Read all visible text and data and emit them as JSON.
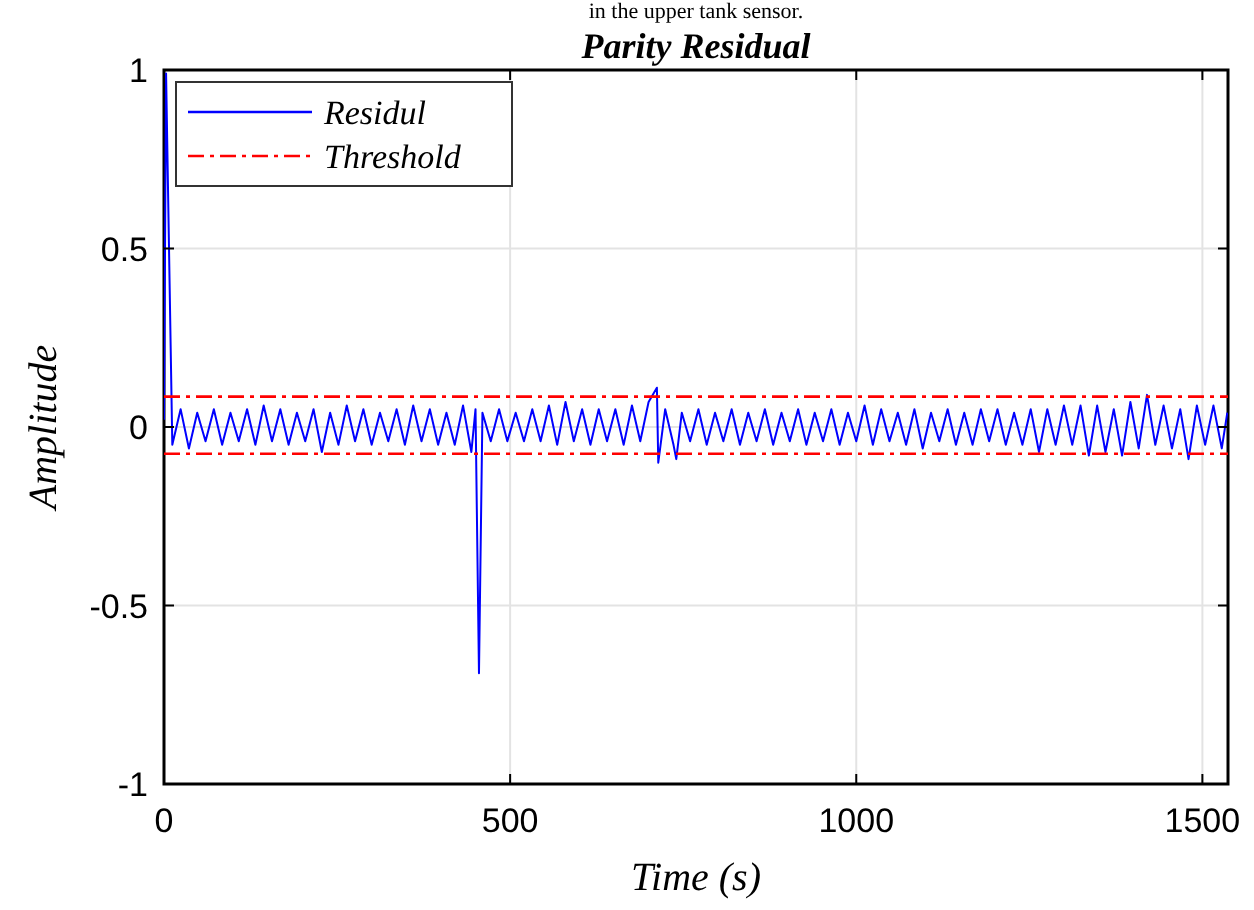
{
  "chart_data": {
    "type": "line",
    "title": "Parity Residual",
    "xlabel": "Time (s)",
    "ylabel": "Amplitude",
    "annotations": [
      "in the upper tank sensor."
    ],
    "xlim": [
      0,
      1537
    ],
    "xticks": [
      0,
      500,
      1000,
      1500
    ],
    "ylim": [
      -1,
      1
    ],
    "yticks": [
      -1,
      -0.5,
      0,
      0.5,
      1
    ],
    "grid": true,
    "legend": "top left",
    "series": [
      {
        "name": "Residul",
        "color": "#0000ff",
        "line_style": "solid",
        "x": [
          0,
          3,
          12,
          24,
          36,
          48,
          60,
          72,
          84,
          96,
          108,
          120,
          132,
          144,
          156,
          168,
          180,
          192,
          204,
          216,
          228,
          240,
          252,
          264,
          276,
          288,
          300,
          312,
          324,
          336,
          348,
          360,
          372,
          384,
          396,
          408,
          420,
          432,
          444,
          450,
          455,
          460,
          472,
          484,
          496,
          508,
          520,
          532,
          544,
          556,
          568,
          580,
          592,
          604,
          616,
          628,
          640,
          652,
          664,
          676,
          688,
          700,
          712,
          714,
          724,
          736,
          740,
          748,
          760,
          772,
          784,
          796,
          808,
          820,
          832,
          844,
          856,
          868,
          880,
          892,
          904,
          916,
          928,
          940,
          952,
          964,
          976,
          988,
          1000,
          1012,
          1024,
          1036,
          1048,
          1060,
          1072,
          1084,
          1096,
          1108,
          1120,
          1132,
          1144,
          1156,
          1168,
          1180,
          1192,
          1204,
          1216,
          1228,
          1240,
          1252,
          1264,
          1276,
          1288,
          1300,
          1312,
          1324,
          1336,
          1348,
          1360,
          1372,
          1384,
          1396,
          1408,
          1420,
          1432,
          1444,
          1456,
          1468,
          1480,
          1492,
          1504,
          1516,
          1528,
          1536
        ],
        "values": [
          0.02,
          0.99,
          -0.05,
          0.05,
          -0.06,
          0.04,
          -0.04,
          0.05,
          -0.05,
          0.04,
          -0.04,
          0.05,
          -0.05,
          0.06,
          -0.04,
          0.05,
          -0.05,
          0.04,
          -0.04,
          0.05,
          -0.07,
          0.04,
          -0.05,
          0.06,
          -0.04,
          0.05,
          -0.05,
          0.04,
          -0.04,
          0.05,
          -0.05,
          0.06,
          -0.04,
          0.05,
          -0.05,
          0.04,
          -0.05,
          0.06,
          -0.07,
          0.05,
          -0.69,
          0.04,
          -0.04,
          0.05,
          -0.04,
          0.04,
          -0.04,
          0.05,
          -0.04,
          0.06,
          -0.05,
          0.07,
          -0.04,
          0.05,
          -0.05,
          0.05,
          -0.04,
          0.05,
          -0.05,
          0.06,
          -0.04,
          0.07,
          0.11,
          -0.1,
          0.05,
          -0.05,
          -0.09,
          0.04,
          -0.04,
          0.05,
          -0.05,
          0.04,
          -0.04,
          0.05,
          -0.05,
          0.04,
          -0.04,
          0.05,
          -0.05,
          0.04,
          -0.04,
          0.05,
          -0.05,
          0.04,
          -0.04,
          0.05,
          -0.05,
          0.04,
          -0.04,
          0.06,
          -0.05,
          0.05,
          -0.04,
          0.04,
          -0.05,
          0.05,
          -0.06,
          0.04,
          -0.04,
          0.05,
          -0.05,
          0.04,
          -0.05,
          0.05,
          -0.04,
          0.05,
          -0.05,
          0.04,
          -0.05,
          0.05,
          -0.07,
          0.05,
          -0.05,
          0.06,
          -0.05,
          0.06,
          -0.08,
          0.06,
          -0.07,
          0.05,
          -0.08,
          0.07,
          -0.06,
          0.09,
          -0.05,
          0.06,
          -0.06,
          0.05,
          -0.09,
          0.06,
          -0.05,
          0.06,
          -0.06,
          0.04
        ]
      },
      {
        "name": "Threshold",
        "color": "#ff0000",
        "line_style": "dashed",
        "x": [
          0,
          1537
        ],
        "values": [
          0.085,
          0.085
        ]
      },
      {
        "color": "#ff0000",
        "line_style": "dashed",
        "x": [
          0,
          1537
        ],
        "values": [
          -0.075,
          -0.075
        ]
      }
    ]
  }
}
